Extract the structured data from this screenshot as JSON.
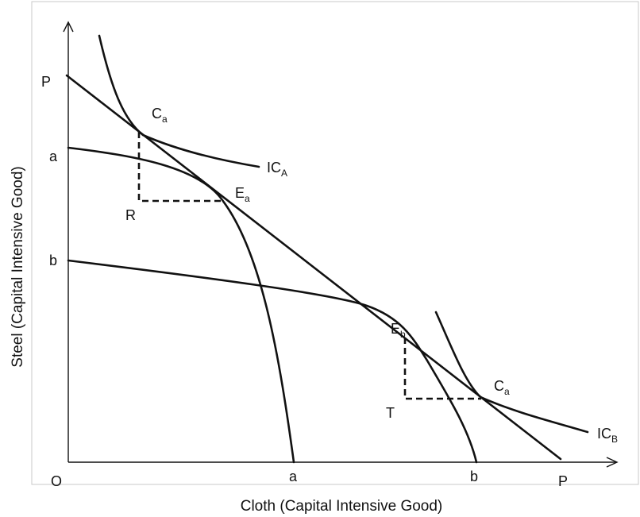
{
  "axes": {
    "x_title": "Cloth (Capital Intensive Good)",
    "y_title": "Steel (Capital Intensive Good)",
    "origin": "O"
  },
  "labels": {
    "p_top": "P",
    "p_bottom": "P",
    "a_y": "a",
    "a_x": "a",
    "b_y": "b",
    "b_x": "b",
    "r": "R",
    "t": "T",
    "ca1": {
      "main": "C",
      "sub": "a"
    },
    "ea": {
      "main": "E",
      "sub": "a"
    },
    "eb": {
      "main": "E",
      "sub": "b"
    },
    "ca2": {
      "main": "C",
      "sub": "a"
    },
    "ica": {
      "main": "IC",
      "sub": "A"
    },
    "icb": {
      "main": "IC",
      "sub": "B"
    }
  }
}
